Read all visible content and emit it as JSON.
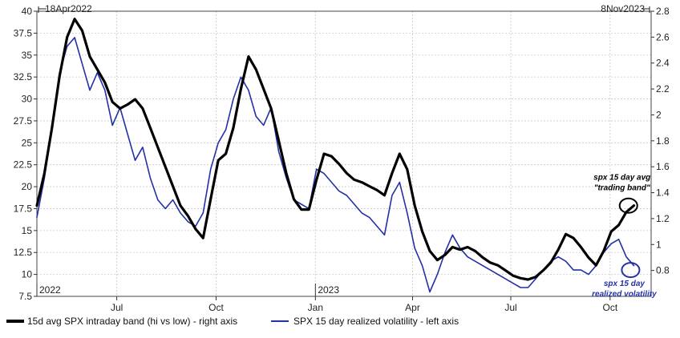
{
  "chart_data": {
    "type": "line",
    "date_range_start_label": "18Apr2022",
    "date_range_end_label": "8Nov2023",
    "x_tick_labels": [
      {
        "label": "Jul",
        "date": "2022-07-01"
      },
      {
        "label": "Oct",
        "date": "2022-10-01"
      },
      {
        "label": "Jan",
        "date": "2023-01-01"
      },
      {
        "label": "Apr",
        "date": "2023-04-01"
      },
      {
        "label": "Jul",
        "date": "2023-07-01"
      },
      {
        "label": "Oct",
        "date": "2023-10-01"
      }
    ],
    "year_labels": [
      {
        "label": "2022",
        "date": "2022-04-18"
      },
      {
        "label": "2023",
        "date": "2023-01-01"
      }
    ],
    "left_axis": {
      "ylim": [
        7.5,
        40
      ],
      "ticks": [
        "7.5",
        "10",
        "12.5",
        "15",
        "17.5",
        "20",
        "22.5",
        "25",
        "27.5",
        "30",
        "32.5",
        "35",
        "37.5",
        "40"
      ]
    },
    "right_axis": {
      "ylim": [
        0.6,
        2.8
      ],
      "ticks": [
        "0.8",
        "1",
        "1.2",
        "1.4",
        "1.6",
        "1.8",
        "2",
        "2.2",
        "2.4",
        "2.6",
        "2.8"
      ]
    },
    "grid": true,
    "legend_position": "bottom",
    "series": [
      {
        "name": "15d avg SPX intraday band (hi vs low) - right axis",
        "axis": "right",
        "color": "#000000",
        "points": [
          [
            "2022-04-18",
            1.3
          ],
          [
            "2022-04-25",
            1.55
          ],
          [
            "2022-05-02",
            1.9
          ],
          [
            "2022-05-09",
            2.3
          ],
          [
            "2022-05-16",
            2.6
          ],
          [
            "2022-05-23",
            2.74
          ],
          [
            "2022-05-30",
            2.65
          ],
          [
            "2022-06-06",
            2.45
          ],
          [
            "2022-06-13",
            2.35
          ],
          [
            "2022-06-20",
            2.25
          ],
          [
            "2022-06-27",
            2.1
          ],
          [
            "2022-07-04",
            2.05
          ],
          [
            "2022-07-11",
            2.08
          ],
          [
            "2022-07-18",
            2.12
          ],
          [
            "2022-07-25",
            2.05
          ],
          [
            "2022-08-01",
            1.9
          ],
          [
            "2022-08-08",
            1.75
          ],
          [
            "2022-08-15",
            1.6
          ],
          [
            "2022-08-22",
            1.45
          ],
          [
            "2022-08-29",
            1.3
          ],
          [
            "2022-09-05",
            1.22
          ],
          [
            "2022-09-12",
            1.12
          ],
          [
            "2022-09-19",
            1.05
          ],
          [
            "2022-09-26",
            1.35
          ],
          [
            "2022-10-03",
            1.65
          ],
          [
            "2022-10-10",
            1.7
          ],
          [
            "2022-10-17",
            1.9
          ],
          [
            "2022-10-24",
            2.2
          ],
          [
            "2022-10-31",
            2.45
          ],
          [
            "2022-11-07",
            2.35
          ],
          [
            "2022-11-14",
            2.2
          ],
          [
            "2022-11-21",
            2.05
          ],
          [
            "2022-11-28",
            1.8
          ],
          [
            "2022-12-05",
            1.55
          ],
          [
            "2022-12-12",
            1.35
          ],
          [
            "2022-12-19",
            1.27
          ],
          [
            "2022-12-26",
            1.27
          ],
          [
            "2023-01-02",
            1.5
          ],
          [
            "2023-01-09",
            1.7
          ],
          [
            "2023-01-16",
            1.68
          ],
          [
            "2023-01-23",
            1.62
          ],
          [
            "2023-01-30",
            1.55
          ],
          [
            "2023-02-06",
            1.5
          ],
          [
            "2023-02-13",
            1.48
          ],
          [
            "2023-02-20",
            1.45
          ],
          [
            "2023-02-27",
            1.42
          ],
          [
            "2023-03-06",
            1.38
          ],
          [
            "2023-03-13",
            1.55
          ],
          [
            "2023-03-20",
            1.7
          ],
          [
            "2023-03-27",
            1.58
          ],
          [
            "2023-04-03",
            1.3
          ],
          [
            "2023-04-10",
            1.1
          ],
          [
            "2023-04-17",
            0.95
          ],
          [
            "2023-04-24",
            0.88
          ],
          [
            "2023-05-01",
            0.92
          ],
          [
            "2023-05-08",
            0.98
          ],
          [
            "2023-05-15",
            0.96
          ],
          [
            "2023-05-22",
            0.98
          ],
          [
            "2023-05-29",
            0.95
          ],
          [
            "2023-06-05",
            0.9
          ],
          [
            "2023-06-12",
            0.86
          ],
          [
            "2023-06-19",
            0.84
          ],
          [
            "2023-06-26",
            0.8
          ],
          [
            "2023-07-03",
            0.76
          ],
          [
            "2023-07-10",
            0.74
          ],
          [
            "2023-07-17",
            0.73
          ],
          [
            "2023-07-24",
            0.75
          ],
          [
            "2023-07-31",
            0.8
          ],
          [
            "2023-08-07",
            0.86
          ],
          [
            "2023-08-14",
            0.96
          ],
          [
            "2023-08-21",
            1.08
          ],
          [
            "2023-08-28",
            1.05
          ],
          [
            "2023-09-04",
            0.98
          ],
          [
            "2023-09-11",
            0.9
          ],
          [
            "2023-09-18",
            0.84
          ],
          [
            "2023-09-25",
            0.95
          ],
          [
            "2023-10-02",
            1.1
          ],
          [
            "2023-10-09",
            1.15
          ],
          [
            "2023-10-16",
            1.25
          ],
          [
            "2023-10-23",
            1.3
          ]
        ]
      },
      {
        "name": "SPX 15 day realized volatility - left axis",
        "axis": "left",
        "color": "#2330a8",
        "points": [
          [
            "2022-04-18",
            16.5
          ],
          [
            "2022-04-25",
            21.0
          ],
          [
            "2022-05-02",
            27.0
          ],
          [
            "2022-05-09",
            33.0
          ],
          [
            "2022-05-16",
            36.0
          ],
          [
            "2022-05-23",
            37.0
          ],
          [
            "2022-05-30",
            34.0
          ],
          [
            "2022-06-06",
            31.0
          ],
          [
            "2022-06-13",
            33.0
          ],
          [
            "2022-06-20",
            31.0
          ],
          [
            "2022-06-27",
            27.0
          ],
          [
            "2022-07-04",
            29.0
          ],
          [
            "2022-07-11",
            26.0
          ],
          [
            "2022-07-18",
            23.0
          ],
          [
            "2022-07-25",
            24.5
          ],
          [
            "2022-08-01",
            21.0
          ],
          [
            "2022-08-08",
            18.5
          ],
          [
            "2022-08-15",
            17.5
          ],
          [
            "2022-08-22",
            18.5
          ],
          [
            "2022-08-29",
            17.0
          ],
          [
            "2022-09-05",
            16.0
          ],
          [
            "2022-09-12",
            15.5
          ],
          [
            "2022-09-19",
            17.0
          ],
          [
            "2022-09-26",
            22.0
          ],
          [
            "2022-10-03",
            25.0
          ],
          [
            "2022-10-10",
            26.5
          ],
          [
            "2022-10-17",
            30.0
          ],
          [
            "2022-10-24",
            32.5
          ],
          [
            "2022-10-31",
            31.0
          ],
          [
            "2022-11-07",
            28.0
          ],
          [
            "2022-11-14",
            27.0
          ],
          [
            "2022-11-21",
            29.0
          ],
          [
            "2022-11-28",
            24.0
          ],
          [
            "2022-12-05",
            21.0
          ],
          [
            "2022-12-12",
            18.5
          ],
          [
            "2022-12-19",
            18.0
          ],
          [
            "2022-12-26",
            17.5
          ],
          [
            "2023-01-02",
            22.0
          ],
          [
            "2023-01-09",
            21.5
          ],
          [
            "2023-01-16",
            20.5
          ],
          [
            "2023-01-23",
            19.5
          ],
          [
            "2023-01-30",
            19.0
          ],
          [
            "2023-02-06",
            18.0
          ],
          [
            "2023-02-13",
            17.0
          ],
          [
            "2023-02-20",
            16.5
          ],
          [
            "2023-02-27",
            15.5
          ],
          [
            "2023-03-06",
            14.5
          ],
          [
            "2023-03-13",
            19.0
          ],
          [
            "2023-03-20",
            20.5
          ],
          [
            "2023-03-27",
            17.0
          ],
          [
            "2023-04-03",
            13.0
          ],
          [
            "2023-04-10",
            11.0
          ],
          [
            "2023-04-17",
            8.0
          ],
          [
            "2023-04-24",
            10.0
          ],
          [
            "2023-05-01",
            12.5
          ],
          [
            "2023-05-08",
            14.5
          ],
          [
            "2023-05-15",
            13.0
          ],
          [
            "2023-05-22",
            12.0
          ],
          [
            "2023-05-29",
            11.5
          ],
          [
            "2023-06-05",
            11.0
          ],
          [
            "2023-06-12",
            10.5
          ],
          [
            "2023-06-19",
            10.0
          ],
          [
            "2023-06-26",
            9.5
          ],
          [
            "2023-07-03",
            9.0
          ],
          [
            "2023-07-10",
            8.5
          ],
          [
            "2023-07-17",
            8.5
          ],
          [
            "2023-07-24",
            9.5
          ],
          [
            "2023-07-31",
            10.5
          ],
          [
            "2023-08-07",
            11.5
          ],
          [
            "2023-08-14",
            12.0
          ],
          [
            "2023-08-21",
            11.5
          ],
          [
            "2023-08-28",
            10.5
          ],
          [
            "2023-09-04",
            10.5
          ],
          [
            "2023-09-11",
            10.0
          ],
          [
            "2023-09-18",
            11.0
          ],
          [
            "2023-09-25",
            12.5
          ],
          [
            "2023-10-02",
            13.5
          ],
          [
            "2023-10-09",
            14.0
          ],
          [
            "2023-10-16",
            12.0
          ],
          [
            "2023-10-23",
            11.0
          ]
        ]
      }
    ],
    "annotations": [
      {
        "text_lines": [
          "spx 15 day avg",
          "\"trading band\""
        ],
        "color": "#000000",
        "date": "2023-10-18",
        "value": 1.3,
        "axis": "right"
      },
      {
        "text_lines": [
          "spx 15 day",
          "realized volatility"
        ],
        "color": "#2330a8",
        "date": "2023-10-20",
        "value": 10.5,
        "axis": "left"
      }
    ]
  }
}
